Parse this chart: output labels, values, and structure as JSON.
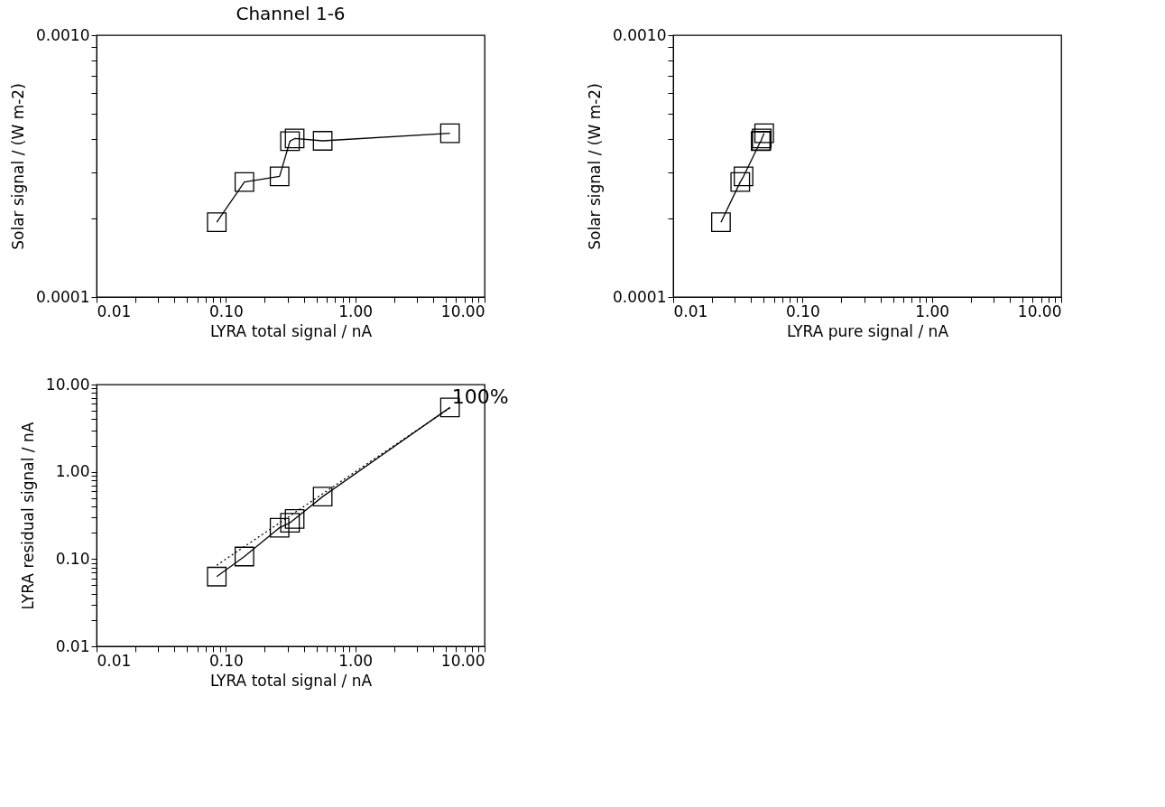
{
  "chart_data": [
    {
      "type": "line",
      "title": "Channel 1-6",
      "xlabel": "LYRA total signal / nA",
      "ylabel": "Solar signal / (W m-2)",
      "log": "xy",
      "marker": "square",
      "line_style": "solid",
      "grid": false,
      "xlim": [
        0.01,
        10
      ],
      "ylim": [
        0.0001,
        0.001
      ],
      "xticks": [
        {
          "value": 0.01,
          "label": "0.01"
        },
        {
          "value": 0.02,
          "label": null
        },
        {
          "value": 0.03,
          "label": null
        },
        {
          "value": 0.04,
          "label": null
        },
        {
          "value": 0.05,
          "label": null
        },
        {
          "value": 0.06,
          "label": null
        },
        {
          "value": 0.07,
          "label": null
        },
        {
          "value": 0.08,
          "label": null
        },
        {
          "value": 0.09,
          "label": null
        },
        {
          "value": 0.1,
          "label": "0.10"
        },
        {
          "value": 0.2,
          "label": null
        },
        {
          "value": 0.3,
          "label": null
        },
        {
          "value": 0.4,
          "label": null
        },
        {
          "value": 0.5,
          "label": null
        },
        {
          "value": 0.6,
          "label": null
        },
        {
          "value": 0.7,
          "label": null
        },
        {
          "value": 0.8,
          "label": null
        },
        {
          "value": 0.9,
          "label": null
        },
        {
          "value": 1,
          "label": "1.00"
        },
        {
          "value": 2,
          "label": null
        },
        {
          "value": 3,
          "label": null
        },
        {
          "value": 4,
          "label": null
        },
        {
          "value": 5,
          "label": null
        },
        {
          "value": 6,
          "label": null
        },
        {
          "value": 7,
          "label": null
        },
        {
          "value": 8,
          "label": null
        },
        {
          "value": 9,
          "label": null
        },
        {
          "value": 10,
          "label": "10.00"
        }
      ],
      "yticks": [
        {
          "value": 0.0001,
          "label": "0.0001"
        },
        {
          "value": 0.0002,
          "label": null
        },
        {
          "value": 0.0003,
          "label": null
        },
        {
          "value": 0.0004,
          "label": null
        },
        {
          "value": 0.0005,
          "label": null
        },
        {
          "value": 0.0006,
          "label": null
        },
        {
          "value": 0.0007,
          "label": null
        },
        {
          "value": 0.0008,
          "label": null
        },
        {
          "value": 0.0009,
          "label": null
        },
        {
          "value": 0.001,
          "label": "0.0010"
        }
      ],
      "series": [
        {
          "color": "#000000",
          "x": [
            0.085,
            0.139,
            0.26,
            0.313,
            0.34,
            0.56,
            5.4
          ],
          "values": [
            0.000193,
            0.000275,
            0.000289,
            0.000394,
            0.000403,
            0.000395,
            0.000422
          ]
        }
      ]
    },
    {
      "type": "line",
      "xlabel": "LYRA pure signal / nA",
      "ylabel": "Solar signal / (W m-2)",
      "log": "xy",
      "marker": "square",
      "line_style": "solid",
      "grid": false,
      "xlim": [
        0.01,
        10
      ],
      "ylim": [
        0.0001,
        0.001
      ],
      "xticks": [
        {
          "value": 0.01,
          "label": "0.01"
        },
        {
          "value": 0.02,
          "label": null
        },
        {
          "value": 0.03,
          "label": null
        },
        {
          "value": 0.04,
          "label": null
        },
        {
          "value": 0.05,
          "label": null
        },
        {
          "value": 0.06,
          "label": null
        },
        {
          "value": 0.07,
          "label": null
        },
        {
          "value": 0.08,
          "label": null
        },
        {
          "value": 0.09,
          "label": null
        },
        {
          "value": 0.1,
          "label": "0.10"
        },
        {
          "value": 0.2,
          "label": null
        },
        {
          "value": 0.3,
          "label": null
        },
        {
          "value": 0.4,
          "label": null
        },
        {
          "value": 0.5,
          "label": null
        },
        {
          "value": 0.6,
          "label": null
        },
        {
          "value": 0.7,
          "label": null
        },
        {
          "value": 0.8,
          "label": null
        },
        {
          "value": 0.9,
          "label": null
        },
        {
          "value": 1,
          "label": "1.00"
        },
        {
          "value": 2,
          "label": null
        },
        {
          "value": 3,
          "label": null
        },
        {
          "value": 4,
          "label": null
        },
        {
          "value": 5,
          "label": null
        },
        {
          "value": 6,
          "label": null
        },
        {
          "value": 7,
          "label": null
        },
        {
          "value": 8,
          "label": null
        },
        {
          "value": 9,
          "label": null
        },
        {
          "value": 10,
          "label": "10.00"
        }
      ],
      "yticks": [
        {
          "value": 0.0001,
          "label": "0.0001"
        },
        {
          "value": 0.0002,
          "label": null
        },
        {
          "value": 0.0003,
          "label": null
        },
        {
          "value": 0.0004,
          "label": null
        },
        {
          "value": 0.0005,
          "label": null
        },
        {
          "value": 0.0006,
          "label": null
        },
        {
          "value": 0.0007,
          "label": null
        },
        {
          "value": 0.0008,
          "label": null
        },
        {
          "value": 0.0009,
          "label": null
        },
        {
          "value": 0.001,
          "label": "0.0010"
        }
      ],
      "series": [
        {
          "color": "#000000",
          "x": [
            0.0234,
            0.033,
            0.035,
            0.0475,
            0.048,
            0.0484,
            0.0505
          ],
          "values": [
            0.000193,
            0.000275,
            0.000289,
            0.000394,
            0.000395,
            0.000403,
            0.000422
          ]
        }
      ]
    },
    {
      "type": "line",
      "xlabel": "LYRA total signal / nA",
      "ylabel": "LYRA residual signal / nA",
      "log": "xy",
      "grid": false,
      "xlim": [
        0.01,
        10
      ],
      "ylim": [
        0.01,
        10
      ],
      "xticks": [
        {
          "value": 0.01,
          "label": "0.01"
        },
        {
          "value": 0.02,
          "label": null
        },
        {
          "value": 0.03,
          "label": null
        },
        {
          "value": 0.04,
          "label": null
        },
        {
          "value": 0.05,
          "label": null
        },
        {
          "value": 0.06,
          "label": null
        },
        {
          "value": 0.07,
          "label": null
        },
        {
          "value": 0.08,
          "label": null
        },
        {
          "value": 0.09,
          "label": null
        },
        {
          "value": 0.1,
          "label": "0.10"
        },
        {
          "value": 0.2,
          "label": null
        },
        {
          "value": 0.3,
          "label": null
        },
        {
          "value": 0.4,
          "label": null
        },
        {
          "value": 0.5,
          "label": null
        },
        {
          "value": 0.6,
          "label": null
        },
        {
          "value": 0.7,
          "label": null
        },
        {
          "value": 0.8,
          "label": null
        },
        {
          "value": 0.9,
          "label": null
        },
        {
          "value": 1,
          "label": "1.00"
        },
        {
          "value": 2,
          "label": null
        },
        {
          "value": 3,
          "label": null
        },
        {
          "value": 4,
          "label": null
        },
        {
          "value": 5,
          "label": null
        },
        {
          "value": 6,
          "label": null
        },
        {
          "value": 7,
          "label": null
        },
        {
          "value": 8,
          "label": null
        },
        {
          "value": 9,
          "label": null
        },
        {
          "value": 10,
          "label": "10.00"
        }
      ],
      "yticks": [
        {
          "value": 0.01,
          "label": "0.01"
        },
        {
          "value": 0.02,
          "label": null
        },
        {
          "value": 0.03,
          "label": null
        },
        {
          "value": 0.04,
          "label": null
        },
        {
          "value": 0.05,
          "label": null
        },
        {
          "value": 0.06,
          "label": null
        },
        {
          "value": 0.07,
          "label": null
        },
        {
          "value": 0.08,
          "label": null
        },
        {
          "value": 0.09,
          "label": null
        },
        {
          "value": 0.1,
          "label": "0.10"
        },
        {
          "value": 0.2,
          "label": null
        },
        {
          "value": 0.3,
          "label": null
        },
        {
          "value": 0.4,
          "label": null
        },
        {
          "value": 0.5,
          "label": null
        },
        {
          "value": 0.6,
          "label": null
        },
        {
          "value": 0.7,
          "label": null
        },
        {
          "value": 0.8,
          "label": null
        },
        {
          "value": 0.9,
          "label": null
        },
        {
          "value": 1,
          "label": "1.00"
        },
        {
          "value": 2,
          "label": null
        },
        {
          "value": 3,
          "label": null
        },
        {
          "value": 4,
          "label": null
        },
        {
          "value": 5,
          "label": null
        },
        {
          "value": 6,
          "label": null
        },
        {
          "value": 7,
          "label": null
        },
        {
          "value": 8,
          "label": null
        },
        {
          "value": 9,
          "label": null
        },
        {
          "value": 10,
          "label": "10.00"
        }
      ],
      "annotations": [
        {
          "text": "100%",
          "x": 5.4,
          "y": 5.4
        }
      ],
      "series": [
        {
          "color": "#000000",
          "marker": "square",
          "line_style": "solid",
          "x": [
            0.085,
            0.139,
            0.26,
            0.313,
            0.34,
            0.56,
            5.4
          ],
          "values": [
            0.063,
            0.107,
            0.229,
            0.261,
            0.288,
            0.52,
            5.46
          ]
        },
        {
          "color": "#000000",
          "marker": "none",
          "line_style": "dotted",
          "x": [
            0.085,
            5.4
          ],
          "values": [
            0.085,
            5.4
          ]
        }
      ]
    }
  ]
}
